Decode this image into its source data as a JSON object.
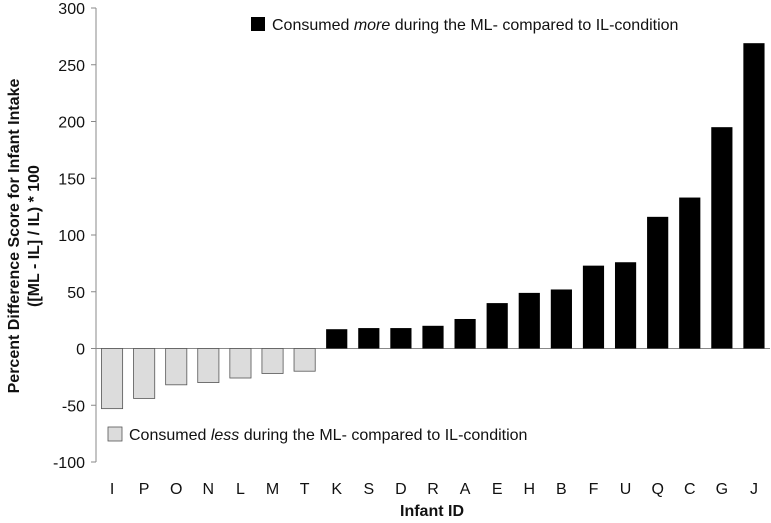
{
  "chart_data": {
    "type": "bar",
    "xlabel": "Infant ID",
    "ylabel_lines": [
      "Percent Difference Score for Infant Intake",
      "([ML - IL] / IL) * 100"
    ],
    "ylim": [
      -100,
      300
    ],
    "yticks": [
      -100,
      -50,
      0,
      50,
      100,
      150,
      200,
      250,
      300
    ],
    "grid": false,
    "categories": [
      "I",
      "P",
      "O",
      "N",
      "L",
      "M",
      "T",
      "K",
      "S",
      "D",
      "R",
      "A",
      "E",
      "H",
      "B",
      "F",
      "U",
      "Q",
      "C",
      "G",
      "J"
    ],
    "values": [
      -53,
      -44,
      -32,
      -30,
      -26,
      -22,
      -20,
      17,
      18,
      18,
      20,
      26,
      40,
      49,
      52,
      73,
      76,
      116,
      133,
      195,
      269
    ],
    "legend": [
      {
        "pre": "Consumed ",
        "em": "more",
        "post": " during the ML- compared to IL-condition",
        "color": "#000000",
        "position": "top"
      },
      {
        "pre": "Consumed ",
        "em": "less",
        "post": " during the ML- compared to IL-condition",
        "color": "#dcdcdc",
        "position": "bottom-left"
      }
    ],
    "colors": {
      "positive": "#000000",
      "negative": "#dcdcdc",
      "negative_edge": "#555555"
    }
  }
}
